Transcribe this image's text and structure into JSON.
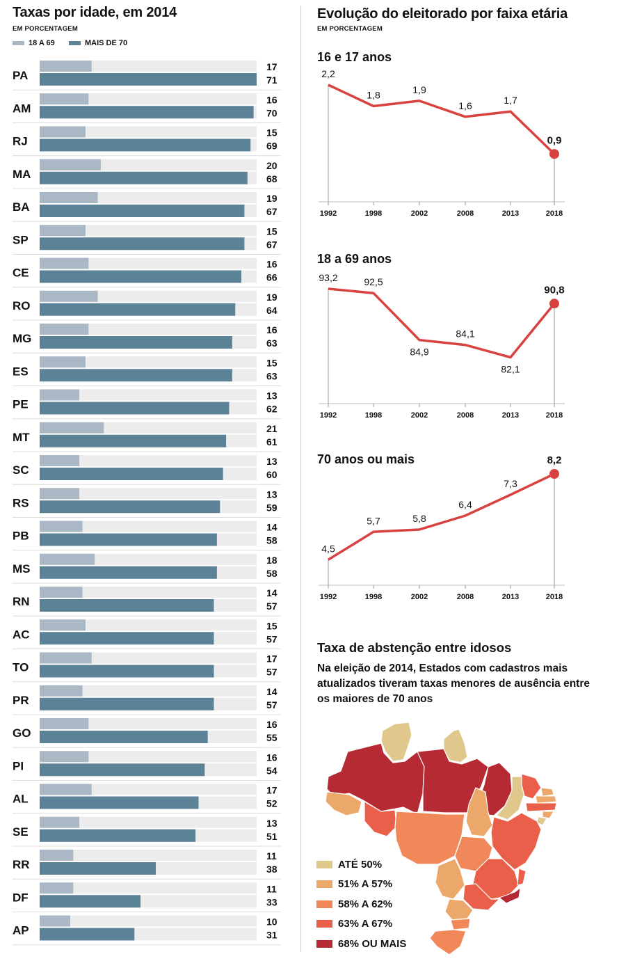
{
  "left_panel": {
    "title": "Taxas por idade, em 2014",
    "subtitle": "EM PORCENTAGEM",
    "legend": [
      {
        "label": "18 A 69",
        "color": "#a9b8c4"
      },
      {
        "label": "MAIS DE 70",
        "color": "#5c8298"
      }
    ]
  },
  "right_panel": {
    "title": "Evolução do eleitorado por faixa etária",
    "subtitle": "EM PORCENTAGEM"
  },
  "map_section": {
    "title": "Taxa de abstenção entre idosos",
    "description": "Na eleição de 2014, Estados com cadastros mais atualizados tiveram taxas menores de ausência entre os maiores de 70 anos",
    "legend": [
      {
        "label": "ATÉ 50%",
        "color": "#e0c88d"
      },
      {
        "label": "51% A 57%",
        "color": "#eba86a"
      },
      {
        "label": "58% A 62%",
        "color": "#f0885a"
      },
      {
        "label": "63% A 67%",
        "color": "#ea5f4a"
      },
      {
        "label": "68% OU MAIS",
        "color": "#b52a33"
      }
    ]
  },
  "chart_data": [
    {
      "type": "bar",
      "orientation": "horizontal",
      "title": "Taxas por idade, em 2014",
      "subtitle": "EM PORCENTAGEM",
      "categories": [
        "PA",
        "AM",
        "RJ",
        "MA",
        "BA",
        "SP",
        "CE",
        "RO",
        "MG",
        "ES",
        "PE",
        "MT",
        "SC",
        "RS",
        "PB",
        "MS",
        "RN",
        "AC",
        "TO",
        "PR",
        "GO",
        "PI",
        "AL",
        "SE",
        "RR",
        "DF",
        "AP"
      ],
      "series": [
        {
          "name": "18 A 69",
          "color": "#a9b8c4",
          "values": [
            17,
            16,
            15,
            20,
            19,
            15,
            16,
            19,
            16,
            15,
            13,
            21,
            13,
            13,
            14,
            18,
            14,
            15,
            17,
            14,
            16,
            16,
            17,
            13,
            11,
            11,
            10
          ]
        },
        {
          "name": "MAIS DE 70",
          "color": "#5c8298",
          "values": [
            71,
            70,
            69,
            68,
            67,
            67,
            66,
            64,
            63,
            63,
            62,
            61,
            60,
            59,
            58,
            58,
            57,
            57,
            57,
            57,
            55,
            54,
            52,
            51,
            38,
            33,
            31
          ]
        }
      ],
      "xlim": [
        0,
        71
      ]
    },
    {
      "type": "line",
      "title": "16 e 17 anos",
      "x": [
        "1992",
        "1998",
        "2002",
        "2008",
        "2013",
        "2018"
      ],
      "y": [
        2.2,
        1.8,
        1.9,
        1.6,
        1.7,
        0.9
      ],
      "labels": [
        "2,2",
        "1,8",
        "1,9",
        "1,6",
        "1,7",
        "0,9"
      ],
      "label_pos": [
        "above",
        "above",
        "above",
        "above",
        "above",
        "above"
      ],
      "ylim": [
        0,
        2.2
      ]
    },
    {
      "type": "line",
      "title": "18 a 69 anos",
      "x": [
        "1992",
        "1998",
        "2002",
        "2008",
        "2013",
        "2018"
      ],
      "y": [
        93.2,
        92.5,
        84.9,
        84.1,
        82.1,
        90.8
      ],
      "labels": [
        "93,2",
        "92,5",
        "84,9",
        "84,1",
        "82,1",
        "90,8"
      ],
      "label_pos": [
        "above",
        "above",
        "below",
        "above",
        "below",
        "above"
      ],
      "ylim": [
        74.6,
        93.2
      ]
    },
    {
      "type": "line",
      "title": "70 anos ou mais",
      "x": [
        "1992",
        "1998",
        "2002",
        "2008",
        "2013",
        "2018"
      ],
      "y": [
        4.5,
        5.7,
        5.8,
        6.4,
        7.3,
        8.2
      ],
      "labels": [
        "4,5",
        "5,7",
        "5,8",
        "6,4",
        "7,3",
        "8,2"
      ],
      "label_pos": [
        "above",
        "above",
        "above",
        "above",
        "above",
        "above"
      ],
      "ylim": [
        3.4,
        8.2
      ]
    }
  ]
}
